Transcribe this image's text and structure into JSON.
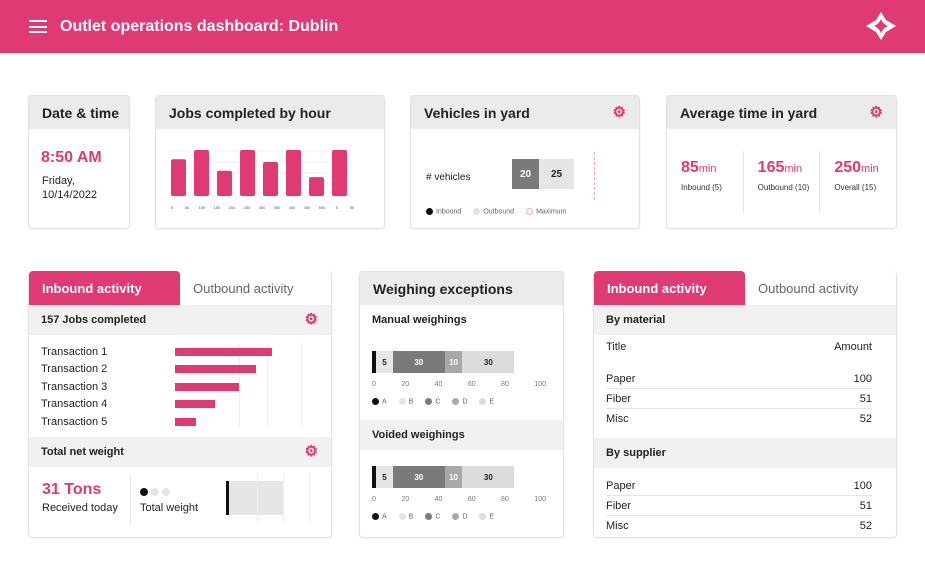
{
  "header": {
    "title": "Outlet operations dashboard: Dublin",
    "menu_icon": "hamburger-icon",
    "logo_icon": "star-logo-icon"
  },
  "date_card": {
    "title": "Date & time",
    "time": "8:50 AM",
    "day": "Friday,",
    "date": "10/14/2022"
  },
  "jobs_card": {
    "title": "Jobs completed by hour"
  },
  "vehicles_card": {
    "title": "Vehicles in yard",
    "label": "# vehicles",
    "inbound": "20",
    "outbound": "25",
    "legend": [
      "Inbound",
      "Outbound",
      "Maximum"
    ]
  },
  "avg_card": {
    "title": "Average time in yard",
    "stats": [
      {
        "value": "85",
        "unit": "min",
        "label": "Inbound (5)"
      },
      {
        "value": "165",
        "unit": "min",
        "label": "Outbound (10)"
      },
      {
        "value": "250",
        "unit": "min",
        "label": "Overall (15)"
      }
    ]
  },
  "left_panel": {
    "tabs": [
      "Inbound activity",
      "Outbound activity"
    ],
    "jobs_title": "157 Jobs completed",
    "weight_title": "Total net weight",
    "weight_value": "31 Tons",
    "weight_sub": "Received today",
    "weight_label": "Total weight"
  },
  "middle_panel": {
    "title": "Weighing exceptions",
    "manual": "Manual weighings",
    "voided": "Voided weighings",
    "ticks": [
      "0",
      "20",
      "40",
      "60",
      "80",
      "100"
    ],
    "legend": [
      "A",
      "B",
      "C",
      "D",
      "E"
    ]
  },
  "right_panel": {
    "tabs": [
      "Inbound activity",
      "Outbound activity"
    ],
    "by_material": "By material",
    "col_title": "Title",
    "col_amount": "Amount",
    "materials": [
      {
        "title": "Paper",
        "amount": "100"
      },
      {
        "title": "Fiber",
        "amount": "51"
      },
      {
        "title": "Misc",
        "amount": "52"
      }
    ],
    "by_supplier": "By supplier",
    "suppliers": [
      {
        "title": "Paper",
        "amount": "100"
      },
      {
        "title": "Fiber",
        "amount": "51"
      },
      {
        "title": "Misc",
        "amount": "52"
      }
    ]
  },
  "colors": {
    "accent": "#e03a74",
    "header_bg": "#ebebeb"
  },
  "chart_data": [
    {
      "type": "bar",
      "title": "Jobs completed by hour",
      "values": [
        0.8,
        1,
        0.55,
        1,
        0.74,
        1,
        0.41,
        1
      ],
      "tick_labels": [
        "0",
        "50",
        "100",
        "150",
        "200",
        "250",
        "300",
        "350",
        "400",
        "450",
        "500",
        "0",
        "50"
      ]
    },
    {
      "type": "bar",
      "orientation": "horizontal",
      "categories": [
        "Transaction 1",
        "Transaction 2",
        "Transaction 3",
        "Transaction 4",
        "Transaction 5"
      ],
      "values": [
        97,
        81,
        64,
        40,
        21
      ]
    },
    {
      "type": "bar",
      "stacked": true,
      "name": "Manual weighings",
      "segments": [
        {
          "label": "A",
          "value": 2
        },
        {
          "label": "B",
          "value": 5
        },
        {
          "label": "C",
          "value": 30
        },
        {
          "label": "D",
          "value": 10
        },
        {
          "label": "E",
          "value": 30
        }
      ],
      "xlim": [
        0,
        100
      ]
    },
    {
      "type": "bar",
      "stacked": true,
      "name": "Voided weighings",
      "segments": [
        {
          "label": "A",
          "value": 2
        },
        {
          "label": "B",
          "value": 5
        },
        {
          "label": "C",
          "value": 30
        },
        {
          "label": "D",
          "value": 10
        },
        {
          "label": "E",
          "value": 30
        }
      ],
      "xlim": [
        0,
        100
      ]
    }
  ]
}
